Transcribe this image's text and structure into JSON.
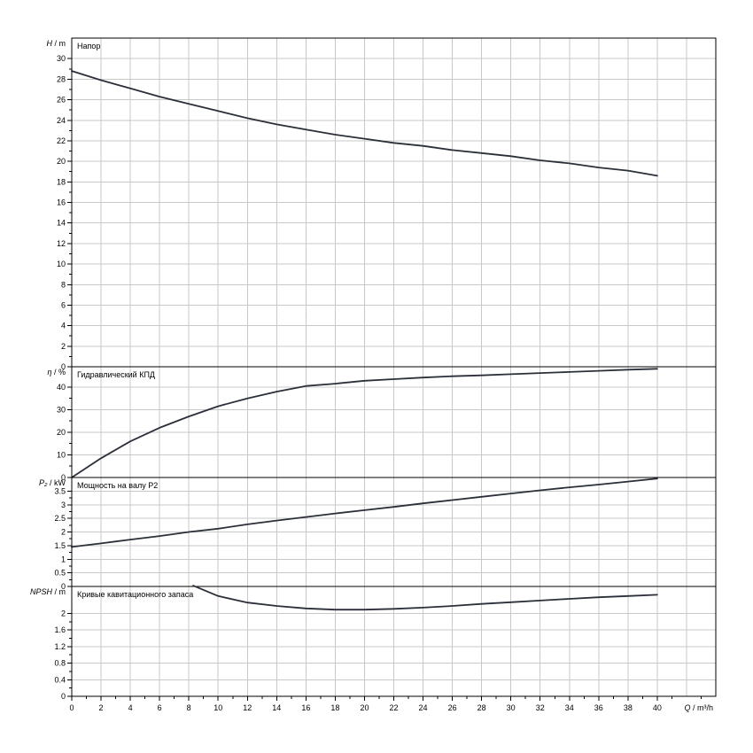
{
  "chart_data": {
    "type": "line",
    "x_axis": {
      "label_var": "Q",
      "label_unit": "m³/h",
      "range": [
        0,
        44
      ],
      "ticks": [
        0,
        2,
        4,
        6,
        8,
        10,
        12,
        14,
        16,
        18,
        20,
        22,
        24,
        26,
        28,
        30,
        32,
        34,
        36,
        38,
        40
      ],
      "tick_labels": [
        "0",
        "2",
        "4",
        "6",
        "8",
        "10",
        "12",
        "14",
        "16",
        "18",
        "20",
        "22",
        "24",
        "26",
        "28",
        "30",
        "32",
        "34",
        "36",
        "38",
        "40"
      ]
    },
    "panels": [
      {
        "key": "head",
        "title": "Напор",
        "ylabel_var": "H",
        "ylabel_unit": "m",
        "ylim": [
          0,
          32
        ],
        "yticks": [
          0,
          2,
          4,
          6,
          8,
          10,
          12,
          14,
          16,
          18,
          20,
          22,
          24,
          26,
          28,
          30
        ],
        "ytick_labels": [
          "0",
          "2",
          "4",
          "6",
          "8",
          "10",
          "12",
          "14",
          "16",
          "18",
          "20",
          "22",
          "24",
          "26",
          "28",
          "30"
        ],
        "series": {
          "x": [
            0,
            2,
            4,
            6,
            8,
            10,
            12,
            14,
            16,
            18,
            20,
            22,
            24,
            26,
            28,
            30,
            32,
            34,
            36,
            38,
            40
          ],
          "y": [
            28.8,
            27.9,
            27.1,
            26.3,
            25.6,
            24.9,
            24.2,
            23.6,
            23.1,
            22.6,
            22.2,
            21.8,
            21.5,
            21.1,
            20.8,
            20.5,
            20.1,
            19.8,
            19.4,
            19.1,
            18.6
          ]
        }
      },
      {
        "key": "efficiency",
        "title": "Гидравлический КПД",
        "ylabel_var": "η",
        "ylabel_unit": "%",
        "ylim": [
          0,
          49
        ],
        "yticks": [
          0,
          10,
          20,
          30,
          40
        ],
        "ytick_labels": [
          "0",
          "10",
          "20",
          "30",
          "40"
        ],
        "series": {
          "x": [
            0,
            2,
            4,
            6,
            8,
            10,
            12,
            14,
            16,
            18,
            20,
            22,
            24,
            26,
            28,
            30,
            32,
            34,
            36,
            38,
            40
          ],
          "y": [
            0,
            8.5,
            16,
            22,
            27,
            31.5,
            35,
            38,
            40.5,
            41.5,
            42.8,
            43.5,
            44.2,
            44.8,
            45.2,
            45.7,
            46.2,
            46.7,
            47.2,
            47.7,
            48.1
          ]
        }
      },
      {
        "key": "power",
        "title": "Мощность на валу P2",
        "ylabel_var": "P₂",
        "ylabel_unit": "kW",
        "ylim": [
          0,
          4
        ],
        "yticks": [
          0,
          0.5,
          1,
          1.5,
          2,
          2.5,
          3,
          3.5
        ],
        "ytick_labels": [
          "0",
          "0.5",
          "1",
          "1.5",
          "2",
          "2.5",
          "3",
          "3.5"
        ],
        "series": {
          "x": [
            0,
            2,
            4,
            6,
            8,
            10,
            12,
            14,
            16,
            18,
            20,
            22,
            24,
            26,
            28,
            30,
            32,
            34,
            36,
            38,
            40
          ],
          "y": [
            1.45,
            1.58,
            1.72,
            1.85,
            2.0,
            2.12,
            2.28,
            2.42,
            2.55,
            2.68,
            2.8,
            2.92,
            3.05,
            3.17,
            3.29,
            3.41,
            3.53,
            3.64,
            3.74,
            3.85,
            3.96
          ]
        }
      },
      {
        "key": "npsh",
        "title": "Кривые кавитационного запаса",
        "ylabel_var": "NPSH",
        "ylabel_unit": "m",
        "ylim": [
          0,
          2.65
        ],
        "yticks": [
          0,
          0.4,
          0.8,
          1.2,
          1.6,
          2.0
        ],
        "ytick_labels": [
          "0",
          "0.4",
          "0.8",
          "1.2",
          "1.6",
          "2"
        ],
        "series": {
          "x": [
            8.3,
            10,
            12,
            14,
            16,
            18,
            20,
            22,
            24,
            26,
            28,
            30,
            32,
            34,
            36,
            38,
            40
          ],
          "y": [
            2.67,
            2.42,
            2.26,
            2.18,
            2.12,
            2.09,
            2.09,
            2.11,
            2.14,
            2.18,
            2.23,
            2.27,
            2.31,
            2.35,
            2.39,
            2.42,
            2.45
          ]
        }
      }
    ],
    "grid": true,
    "line_color": "#2b2f3a",
    "grid_color": "#c8c8c8"
  }
}
